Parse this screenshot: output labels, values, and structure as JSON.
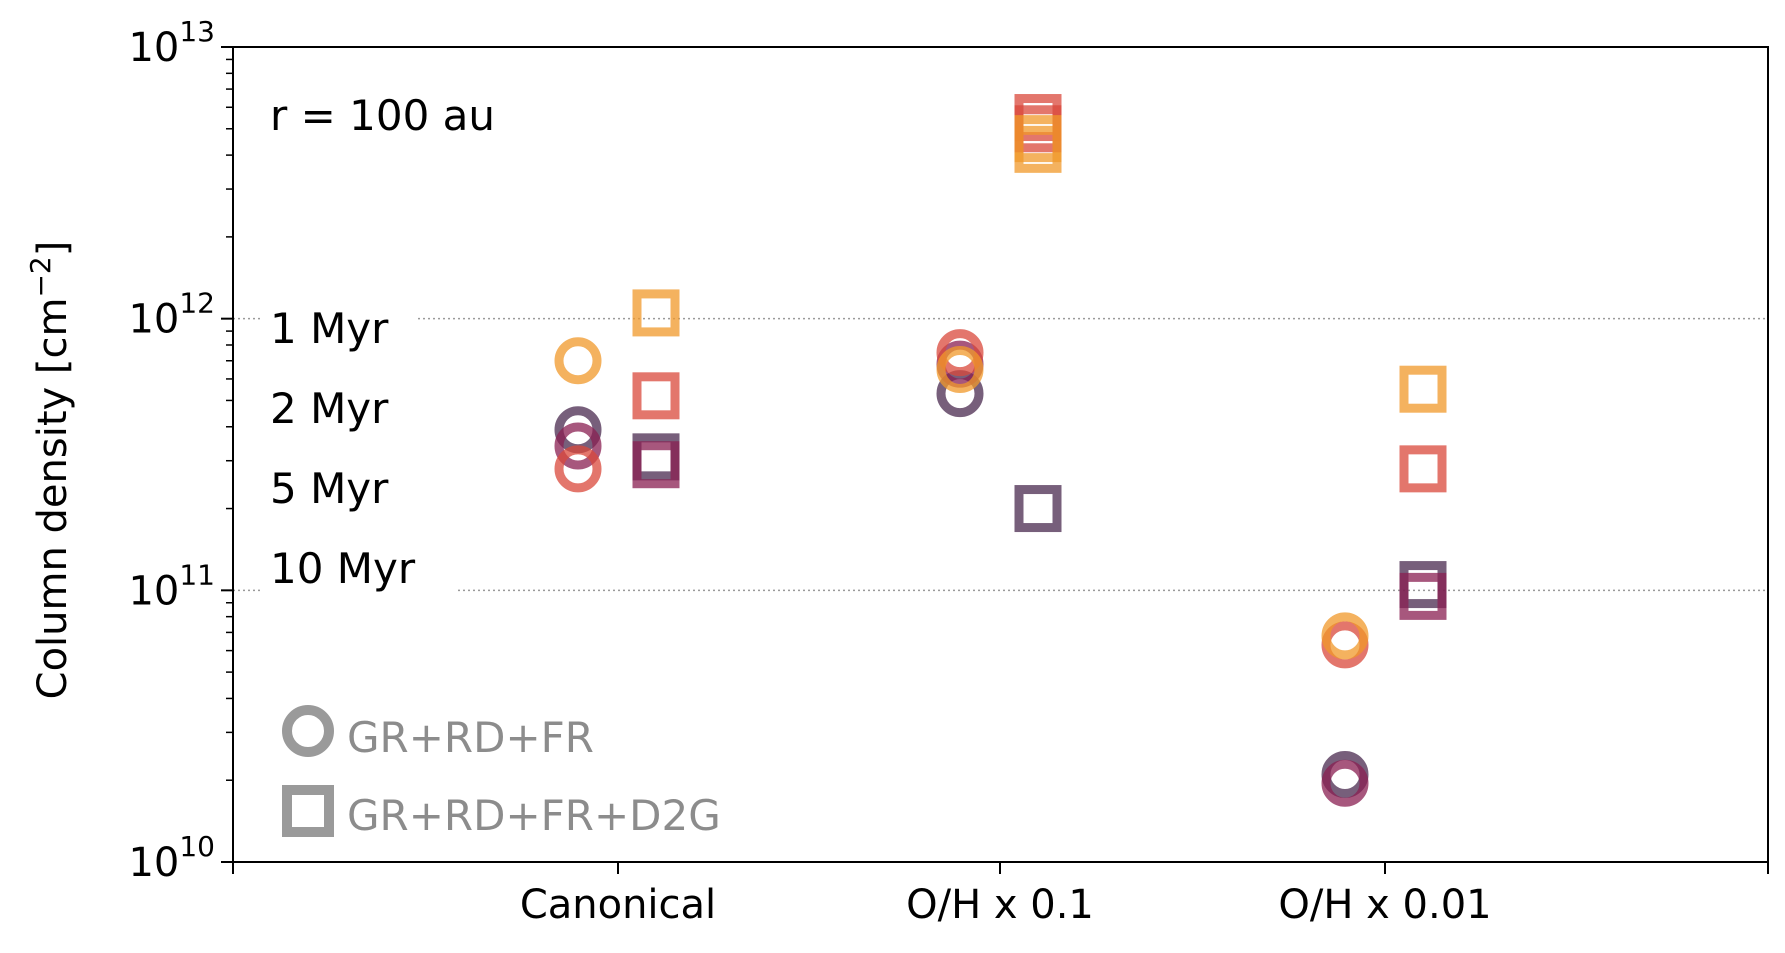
{
  "chart_data": {
    "type": "scatter",
    "title": "",
    "ylabel": "Column density [cm",
    "ylabel_sup": "−2",
    "ylabel_close": "]",
    "yscale": "log",
    "ylim": [
      10000000000.0,
      10000000000000.0
    ],
    "ytick_labels": [
      {
        "base": "10",
        "exp": "10",
        "value": 10000000000.0
      },
      {
        "base": "10",
        "exp": "11",
        "value": 100000000000.0
      },
      {
        "base": "10",
        "exp": "12",
        "value": 1000000000000.0
      },
      {
        "base": "10",
        "exp": "13",
        "value": 10000000000000.0
      }
    ],
    "categories": [
      "Canonical",
      "O/H x 0.1",
      "O/H x 0.01"
    ],
    "grid": "dotted horizontal at 1e11 and 1e12",
    "annotation": "r = 100 au",
    "ages": [
      {
        "label": "1 Myr",
        "color": "#4a2a4f"
      },
      {
        "label": "2 Myr",
        "color": "#8a1f52"
      },
      {
        "label": "5 Myr",
        "color": "#d9483b"
      },
      {
        "label": "10 Myr",
        "color": "#f0982a"
      }
    ],
    "models": [
      {
        "label": "GR+RD+FR",
        "marker": "circle"
      },
      {
        "label": "GR+RD+FR+D2G",
        "marker": "square"
      }
    ],
    "series": [
      {
        "age": "1 Myr",
        "marker": "circle",
        "values": [
          390000000000.0,
          530000000000.0,
          21000000000.0
        ]
      },
      {
        "age": "2 Myr",
        "marker": "circle",
        "values": [
          340000000000.0,
          680000000000.0,
          19500000000.0
        ]
      },
      {
        "age": "5 Myr",
        "marker": "circle",
        "values": [
          280000000000.0,
          750000000000.0,
          63000000000.0
        ]
      },
      {
        "age": "10 Myr",
        "marker": "circle",
        "values": [
          700000000000.0,
          650000000000.0,
          68000000000.0
        ]
      },
      {
        "age": "1 Myr",
        "marker": "square",
        "values": [
          310000000000.0,
          200000000000.0,
          105000000000.0
        ]
      },
      {
        "age": "2 Myr",
        "marker": "square",
        "values": [
          290000000000.0,
          null,
          95000000000.0
        ]
      },
      {
        "age": "5 Myr",
        "marker": "square",
        "values": [
          520000000000.0,
          5500000000000.0,
          280000000000.0
        ]
      },
      {
        "age": "10 Myr",
        "marker": "square",
        "values": [
          1050000000000.0,
          4200000000000.0,
          550000000000.0
        ]
      }
    ],
    "extra_points": [
      {
        "age": "5 Myr",
        "marker": "square",
        "category": "O/H x 0.1",
        "value": 5000000000000.0
      },
      {
        "age": "10 Myr",
        "marker": "square",
        "category": "O/H x 0.1",
        "value": 4600000000000.0
      }
    ]
  }
}
